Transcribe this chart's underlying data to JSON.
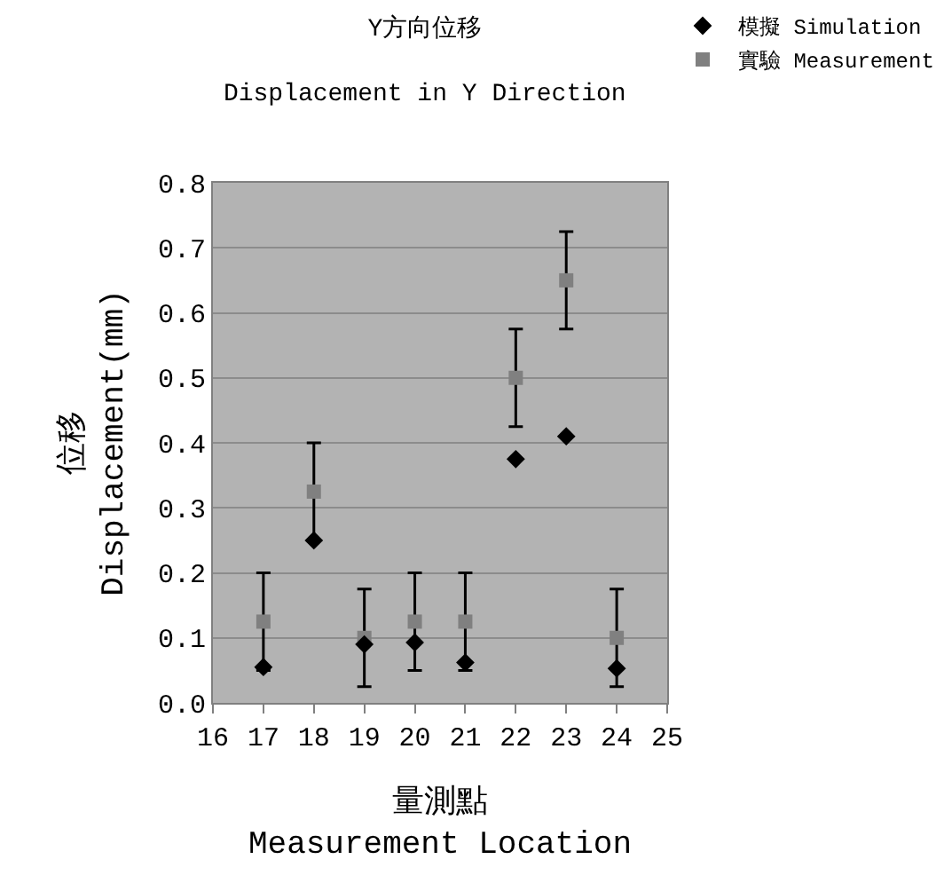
{
  "chart_data": {
    "type": "scatter",
    "title": "Y方向位移",
    "subtitle": "Displacement in Y Direction",
    "xlabel": "量測點\nMeasurement Location",
    "ylabel": "位移\nDisplacement(mm)",
    "x": [
      17,
      18,
      19,
      20,
      21,
      22,
      23,
      24
    ],
    "series": [
      {
        "name": "模擬 Simulation",
        "color": "#000000",
        "marker": "diamond",
        "values": [
          0.055,
          0.25,
          0.09,
          0.093,
          0.062,
          0.375,
          0.41,
          0.053
        ]
      },
      {
        "name": "實驗 Measurement",
        "color": "#808080",
        "marker": "square",
        "values": [
          0.125,
          0.325,
          0.1,
          0.125,
          0.125,
          0.5,
          0.65,
          0.1
        ],
        "errors": [
          0.075,
          0.075,
          0.075,
          0.075,
          0.075,
          0.075,
          0.075,
          0.075
        ]
      }
    ],
    "xlim": [
      16,
      25
    ],
    "xticks": [
      16,
      17,
      18,
      19,
      20,
      21,
      22,
      23,
      24,
      25
    ],
    "ylim": [
      0,
      0.8
    ],
    "yticks": [
      {
        "value": 0,
        "label": "0.0"
      },
      0.1,
      0.2,
      0.3,
      0.4,
      0.5,
      0.6,
      0.7,
      0.8
    ],
    "grid": "y",
    "legend": "top right"
  }
}
